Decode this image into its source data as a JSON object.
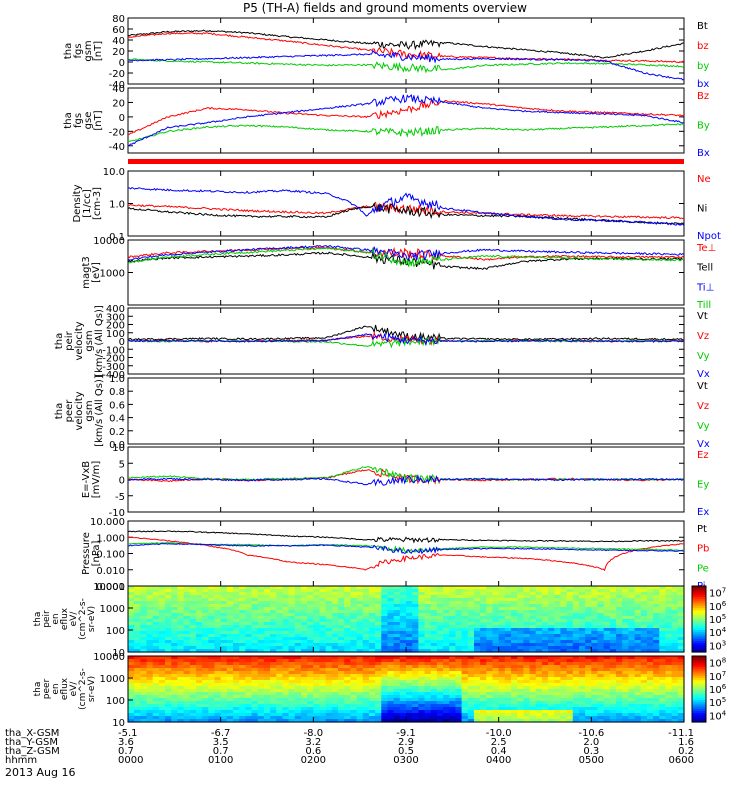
{
  "chart_data": {
    "type": "line",
    "title": "P5 (TH-A) fields and ground moments overview",
    "date_label": "2013 Aug 16",
    "orbit": {
      "row_labels": [
        "tha_X-GSM",
        "tha_Y-GSM",
        "tha_Z-GSM",
        "hhmm"
      ],
      "columns": [
        {
          "x": "-5.1",
          "y": "3.6",
          "z": "0.7",
          "t": "0000"
        },
        {
          "x": "-6.7",
          "y": "3.5",
          "z": "0.7",
          "t": "0100"
        },
        {
          "x": "-8.0",
          "y": "3.2",
          "z": "0.6",
          "t": "0200"
        },
        {
          "x": "-9.1",
          "y": "2.9",
          "z": "0.5",
          "t": "0300"
        },
        {
          "x": "-10.0",
          "y": "2.5",
          "z": "0.4",
          "t": "0400"
        },
        {
          "x": "-10.6",
          "y": "2.0",
          "z": "0.3",
          "t": "0500"
        },
        {
          "x": "-11.1",
          "y": "1.6",
          "z": "0.2",
          "t": "0600"
        }
      ]
    },
    "panels": [
      {
        "id": "fgs-gsm",
        "ylabel": [
          "tha",
          "fgs",
          "gsm",
          "[nT]"
        ],
        "ylim": [
          -40,
          80
        ],
        "scale": "linear",
        "ticks": [
          "80",
          "60",
          "40",
          "20",
          "0",
          "-20",
          "-40"
        ],
        "tick_values": [
          80,
          60,
          40,
          20,
          0,
          -20,
          -40
        ],
        "series": [
          {
            "name": "Bt",
            "color": "#000000",
            "values": [
              48,
              55,
              57,
              53,
              46,
              40,
              34,
              30,
              35,
              28,
              22,
              16,
              8,
              20,
              34
            ]
          },
          {
            "name": "bz",
            "color": "#ff0000",
            "values": [
              45,
              52,
              52,
              45,
              38,
              30,
              22,
              14,
              10,
              8,
              6,
              5,
              3,
              2,
              0
            ]
          },
          {
            "name": "by",
            "color": "#00cc00",
            "values": [
              5,
              2,
              0,
              -2,
              -4,
              -6,
              -5,
              -10,
              -14,
              -6,
              -4,
              -2,
              -3,
              -5,
              -8
            ]
          },
          {
            "name": "bx",
            "color": "#0000ff",
            "values": [
              3,
              4,
              6,
              8,
              10,
              12,
              14,
              10,
              5,
              6,
              5,
              4,
              2,
              -20,
              -32
            ]
          }
        ]
      },
      {
        "id": "fgs-gse",
        "ylabel": [
          "tha",
          "fgs",
          "gse",
          "[nT]"
        ],
        "ylim": [
          -50,
          40
        ],
        "scale": "linear",
        "ticks": [
          "40",
          "20",
          "0",
          "-20",
          "-40"
        ],
        "tick_values": [
          40,
          20,
          0,
          -20,
          -40
        ],
        "series": [
          {
            "name": "Bz",
            "color": "#ff0000",
            "values": [
              -25,
              0,
              12,
              10,
              5,
              2,
              0,
              10,
              22,
              18,
              12,
              8,
              6,
              4,
              2
            ]
          },
          {
            "name": "By",
            "color": "#00cc00",
            "values": [
              -35,
              -20,
              -14,
              -12,
              -14,
              -18,
              -20,
              -22,
              -18,
              -16,
              -18,
              -16,
              -14,
              -12,
              -10
            ]
          },
          {
            "name": "Bx",
            "color": "#0000ff",
            "values": [
              -40,
              -15,
              -8,
              0,
              6,
              12,
              18,
              26,
              20,
              12,
              8,
              6,
              4,
              2,
              -8
            ]
          }
        ]
      },
      {
        "id": "density",
        "ylabel": [
          "Density",
          "[1/cc]",
          "[cm-3]"
        ],
        "ylim": [
          0.1,
          10
        ],
        "scale": "log",
        "ticks": [
          "10.0",
          "1.0",
          "0.1"
        ],
        "tick_values": [
          10,
          1,
          0.1
        ],
        "series": [
          {
            "name": "Ne",
            "color": "#ff0000",
            "values": [
              0.9,
              0.8,
              0.7,
              0.6,
              0.55,
              0.5,
              0.8,
              0.7,
              0.55,
              0.5,
              0.45,
              0.42,
              0.4,
              0.38,
              0.36
            ]
          },
          {
            "name": "Ni",
            "color": "#000000",
            "values": [
              0.7,
              0.55,
              0.45,
              0.4,
              0.4,
              0.38,
              0.8,
              0.6,
              0.45,
              0.42,
              0.4,
              0.35,
              0.3,
              0.26,
              0.24
            ]
          },
          {
            "name": "Npot",
            "color": "#0000ff",
            "values": [
              3,
              2.6,
              2.4,
              2.2,
              2.5,
              2.0,
              0.4,
              1.5,
              0.7,
              0.5,
              0.4,
              0.32,
              0.3,
              0.26,
              0.22
            ]
          }
        ]
      },
      {
        "id": "temperature",
        "ylabel": [
          "magt3",
          "[eV]"
        ],
        "ylim": [
          100,
          10000
        ],
        "scale": "log",
        "ticks": [
          "10000",
          "1000"
        ],
        "tick_values": [
          10000,
          1000
        ],
        "series": [
          {
            "name": "Te⊥",
            "color": "#ff0000",
            "values": [
              3000,
              4000,
              4500,
              5000,
              5500,
              5800,
              4200,
              4000,
              3200,
              2500,
              3000,
              3200,
              3000,
              3000,
              3000
            ]
          },
          {
            "name": "Tell",
            "color": "#000000",
            "values": [
              2200,
              2800,
              3000,
              3200,
              3500,
              4000,
              3000,
              2200,
              1500,
              1300,
              2200,
              2600,
              2700,
              2600,
              2600
            ]
          },
          {
            "name": "Ti⊥",
            "color": "#0000ff",
            "values": [
              2500,
              3500,
              4200,
              5000,
              5800,
              6500,
              5000,
              3000,
              4000,
              5000,
              4500,
              4200,
              4000,
              3800,
              3600
            ]
          },
          {
            "name": "Till",
            "color": "#00cc00",
            "values": [
              2000,
              3000,
              3600,
              4200,
              4800,
              5500,
              4200,
              2000,
              2500,
              3200,
              3000,
              2800,
              2600,
              2500,
              2400
            ]
          }
        ]
      },
      {
        "id": "peir-velocity",
        "ylabel": [
          "tha",
          "peir",
          "velocity",
          "gsm",
          "[km/s (All Qs)]"
        ],
        "ylim": [
          -400,
          400
        ],
        "scale": "linear",
        "ticks": [
          "400",
          "300",
          "200",
          "100",
          "0",
          "-100",
          "-200",
          "-300",
          "-400"
        ],
        "tick_values": [
          400,
          300,
          200,
          100,
          0,
          -100,
          -200,
          -300,
          -400
        ],
        "series": [
          {
            "name": "Vt",
            "color": "#000000",
            "values": [
              20,
              25,
              30,
              25,
              30,
              40,
              180,
              60,
              30,
              25,
              20,
              25,
              30,
              25,
              20
            ]
          },
          {
            "name": "Vz",
            "color": "#ff0000",
            "values": [
              0,
              5,
              -5,
              0,
              5,
              10,
              60,
              20,
              5,
              0,
              5,
              0,
              -5,
              0,
              5
            ]
          },
          {
            "name": "Vy",
            "color": "#00cc00",
            "values": [
              0,
              -5,
              5,
              0,
              -5,
              -10,
              -60,
              -10,
              0,
              5,
              0,
              -5,
              0,
              5,
              0
            ]
          },
          {
            "name": "Vx",
            "color": "#0000ff",
            "values": [
              0,
              5,
              0,
              -5,
              0,
              5,
              80,
              10,
              0,
              -5,
              0,
              5,
              0,
              -5,
              0
            ]
          }
        ]
      },
      {
        "id": "peer-velocity",
        "ylabel": [
          "tha",
          "peer",
          "velocity",
          "gsm",
          "[km/s (All Qs)]"
        ],
        "ylim": [
          0,
          1
        ],
        "scale": "linear",
        "ticks": [
          "1.0",
          "0.8",
          "0.6",
          "0.4",
          "0.2",
          "0.0"
        ],
        "tick_values": [
          1.0,
          0.8,
          0.6,
          0.4,
          0.2,
          0.0
        ],
        "series": [
          {
            "name": "Vt",
            "color": "#000000",
            "values": []
          },
          {
            "name": "Vz",
            "color": "#ff0000",
            "values": []
          },
          {
            "name": "Vy",
            "color": "#00cc00",
            "values": []
          },
          {
            "name": "Vx",
            "color": "#0000ff",
            "values": []
          }
        ]
      },
      {
        "id": "efield",
        "ylabel": [
          "E=-VxB",
          "[mV/m]"
        ],
        "ylim": [
          -10,
          10
        ],
        "scale": "linear",
        "ticks": [
          "10",
          "5",
          "0",
          "-5",
          "-10"
        ],
        "tick_values": [
          10,
          5,
          0,
          -5,
          -10
        ],
        "series": [
          {
            "name": "Ez",
            "color": "#ff0000",
            "values": [
              0,
              -0.5,
              0.2,
              -0.3,
              0,
              0.5,
              3,
              0.2,
              0,
              -0.2,
              0,
              0.2,
              0,
              -0.2,
              0
            ]
          },
          {
            "name": "Ey",
            "color": "#00cc00",
            "values": [
              0.5,
              1,
              0.2,
              0,
              0.3,
              0.5,
              4,
              0.5,
              0,
              0.2,
              0,
              0.1,
              0,
              0.1,
              0
            ]
          },
          {
            "name": "Ex",
            "color": "#0000ff",
            "values": [
              0,
              0.2,
              0,
              -0.2,
              0,
              0.2,
              -1.5,
              0,
              0,
              0.2,
              0,
              -0.1,
              0,
              0.1,
              0
            ]
          }
        ]
      },
      {
        "id": "pressure",
        "ylabel": [
          "Pressure",
          "[nPa]"
        ],
        "ylim": [
          0.001,
          10
        ],
        "scale": "log",
        "ticks": [
          "10.000",
          "1.000",
          "0.100",
          "0.010",
          "0.001"
        ],
        "tick_values": [
          10,
          1,
          0.1,
          0.01,
          0.001
        ],
        "series": [
          {
            "name": "Pt",
            "color": "#000000",
            "values": [
              2.2,
              2.4,
              2.0,
              1.6,
              1.2,
              1.0,
              0.7,
              0.7,
              0.7,
              0.65,
              0.6,
              0.6,
              0.55,
              0.6,
              0.6
            ]
          },
          {
            "name": "Pb",
            "color": "#ff0000",
            "values": [
              1.0,
              0.6,
              0.3,
              0.08,
              0.03,
              0.02,
              0.01,
              0.05,
              0.08,
              0.06,
              0.05,
              0.03,
              0.01,
              0.2,
              0.4
            ]
          },
          {
            "name": "Pe",
            "color": "#00cc00",
            "values": [
              0.4,
              0.45,
              0.35,
              0.35,
              0.3,
              0.35,
              0.3,
              0.15,
              0.2,
              0.25,
              0.25,
              0.22,
              0.2,
              0.18,
              0.16
            ]
          },
          {
            "name": "Pi",
            "color": "#0000ff",
            "values": [
              0.3,
              0.4,
              0.35,
              0.3,
              0.3,
              0.32,
              0.25,
              0.12,
              0.18,
              0.2,
              0.2,
              0.18,
              0.16,
              0.15,
              0.14
            ]
          }
        ]
      }
    ],
    "spectrograms": [
      {
        "id": "peir-spectrogram",
        "ylabel": [
          "tha",
          "peir",
          "en",
          "eflux",
          "eV/",
          "(cm^2-s-",
          "sr-eV)"
        ],
        "ylim": [
          10,
          10000
        ],
        "ticks": [
          "10000",
          "1000",
          "100",
          "10"
        ],
        "tick_values": [
          10000,
          1000,
          100,
          10
        ],
        "colorbar": {
          "min_exp": 3,
          "max_exp": 7,
          "labels": [
            "10^3",
            "10^4",
            "10^5",
            "10^6",
            "10^7"
          ]
        }
      },
      {
        "id": "peer-spectrogram",
        "ylabel": [
          "tha",
          "peer",
          "en",
          "eflux",
          "eV/",
          "(cm^2-s-",
          "sr-eV)"
        ],
        "ylim": [
          10,
          10000
        ],
        "ticks": [
          "10000",
          "1000",
          "100",
          "10"
        ],
        "tick_values": [
          10000,
          1000,
          100,
          10
        ],
        "colorbar": {
          "min_exp": 4,
          "max_exp": 8,
          "labels": [
            "10^4",
            "10^5",
            "10^6",
            "10^7",
            "10^8"
          ]
        }
      }
    ]
  }
}
